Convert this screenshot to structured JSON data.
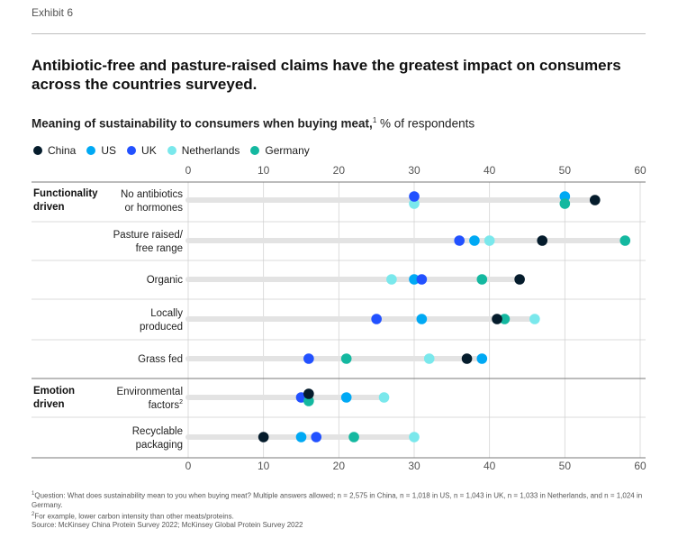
{
  "exhibit_label": "Exhibit 6",
  "title": "Antibiotic-free and pasture-raised claims have the greatest impact on consumers across the countries surveyed.",
  "subtitle": {
    "bold": "Meaning of sustainability to consumers when buying meat,",
    "sup": "1",
    "rest": " % of respondents"
  },
  "colors": {
    "China": "#051c2c",
    "US": "#00a9f4",
    "UK": "#2251ff",
    "Netherlands": "#7ae8ec",
    "Germany": "#14b8a0",
    "track": "#e3e3e3",
    "grid": "#d4d4d4"
  },
  "chart_data": {
    "type": "scatter",
    "title": "Meaning of sustainability to consumers when buying meat",
    "xlabel": "% of respondents",
    "xlim": [
      0,
      60
    ],
    "ticks": [
      0,
      10,
      20,
      30,
      40,
      50,
      60
    ],
    "legend_position": "top-left",
    "series_order": [
      "China",
      "US",
      "UK",
      "Netherlands",
      "Germany"
    ],
    "groups": [
      {
        "label": "Functionality driven",
        "label_lines": [
          "Functionality",
          "driven"
        ],
        "start_row": 0
      },
      {
        "label": "Emotion driven",
        "label_lines": [
          "Emotion",
          "driven"
        ],
        "start_row": 5
      }
    ],
    "rows": [
      {
        "label": "No antibiotics or hormones",
        "label_lines": [
          "No antibiotics",
          "or hormones"
        ],
        "values": {
          "China": 54,
          "US": 50,
          "UK": 30,
          "Netherlands": 30,
          "Germany": 50
        }
      },
      {
        "label": "Pasture raised/ free range",
        "label_lines": [
          "Pasture raised/",
          "free range"
        ],
        "values": {
          "China": 47,
          "US": 38,
          "UK": 36,
          "Netherlands": 40,
          "Germany": 58
        }
      },
      {
        "label": "Organic",
        "label_lines": [
          "Organic"
        ],
        "values": {
          "China": 44,
          "US": 30,
          "UK": 31,
          "Netherlands": 27,
          "Germany": 39
        }
      },
      {
        "label": "Locally produced",
        "label_lines": [
          "Locally",
          "produced"
        ],
        "values": {
          "China": 41,
          "US": 31,
          "UK": 25,
          "Netherlands": 46,
          "Germany": 42
        }
      },
      {
        "label": "Grass fed",
        "label_lines": [
          "Grass fed"
        ],
        "values": {
          "China": 37,
          "US": 39,
          "UK": 16,
          "Netherlands": 32,
          "Germany": 21
        }
      },
      {
        "label": "Environmental factors",
        "label_lines": [
          "Environmental",
          "factors"
        ],
        "label_sup": "2",
        "values": {
          "China": 16,
          "US": 21,
          "UK": 15,
          "Netherlands": 26,
          "Germany": 16
        }
      },
      {
        "label": "Recyclable packaging",
        "label_lines": [
          "Recyclable",
          "packaging"
        ],
        "values": {
          "China": 10,
          "US": 15,
          "UK": 17,
          "Netherlands": 30,
          "Germany": 22
        }
      }
    ]
  },
  "footnotes": {
    "note1_sup": "1",
    "note1": "Question: What does sustainability mean to you when buying meat? Multiple answers allowed; n = 2,575 in China, n = 1,018 in US, n = 1,043 in UK, n = 1,033 in Netherlands, and n = 1,024 in Germany.",
    "note2_sup": "2",
    "note2": "For example, lower carbon intensity than other meats/proteins.",
    "source": "Source: McKinsey China Protein Survey 2022; McKinsey Global Protein Survey 2022"
  }
}
